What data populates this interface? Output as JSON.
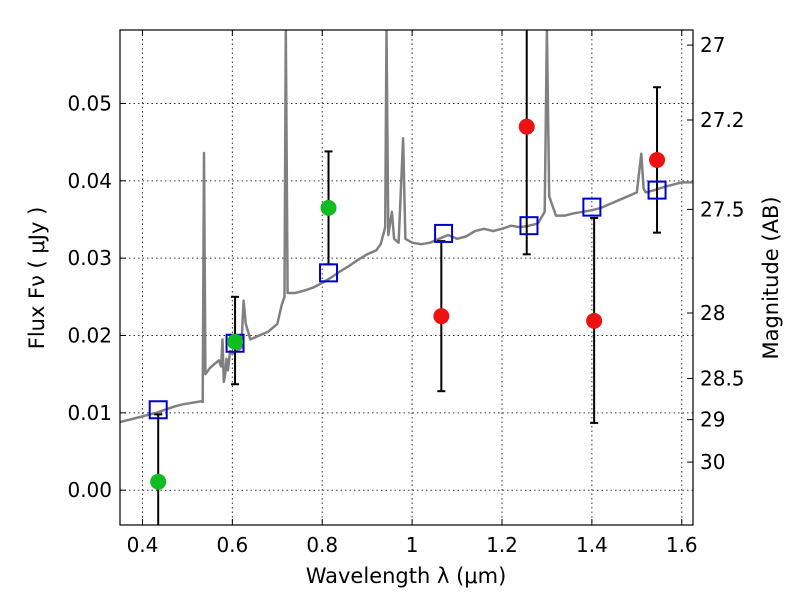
{
  "chart_data": {
    "type": "scatter",
    "xlabel": "Wavelength  λ (μm)",
    "ylabel": "Flux  Fν  ( μJy )",
    "ylabel_right": "Magnitude (AB)",
    "xlim": [
      0.35,
      1.625
    ],
    "ylim": [
      -0.0045,
      0.0595
    ],
    "x_ticks": [
      {
        "value": 0.4,
        "label": "0.4"
      },
      {
        "value": 0.6,
        "label": "0.6"
      },
      {
        "value": 0.8,
        "label": "0.8"
      },
      {
        "value": 1.0,
        "label": "1"
      },
      {
        "value": 1.2,
        "label": "1.2"
      },
      {
        "value": 1.4,
        "label": "1.4"
      },
      {
        "value": 1.6,
        "label": "1.6"
      }
    ],
    "y_ticks": [
      {
        "value": 0.0,
        "label": "0.00"
      },
      {
        "value": 0.01,
        "label": "0.01"
      },
      {
        "value": 0.02,
        "label": "0.02"
      },
      {
        "value": 0.03,
        "label": "0.03"
      },
      {
        "value": 0.04,
        "label": "0.04"
      },
      {
        "value": 0.05,
        "label": "0.05"
      }
    ],
    "mag_ticks": [
      {
        "value": 27.0,
        "label": "27"
      },
      {
        "value": 27.2,
        "label": "27.2"
      },
      {
        "value": 27.5,
        "label": "27.5"
      },
      {
        "value": 28.0,
        "label": "28"
      },
      {
        "value": 28.5,
        "label": "28.5"
      },
      {
        "value": 29.0,
        "label": "29"
      },
      {
        "value": 30.0,
        "label": "30"
      }
    ],
    "colors": {
      "spectrum": "#808080",
      "model": "#0000cc",
      "green": "#11bb22",
      "red": "#ee1111",
      "errorbar": "#000000"
    },
    "spectrum": [
      [
        0.35,
        0.0088
      ],
      [
        0.37,
        0.0091
      ],
      [
        0.39,
        0.0094
      ],
      [
        0.41,
        0.0097
      ],
      [
        0.43,
        0.01
      ],
      [
        0.45,
        0.0104
      ],
      [
        0.47,
        0.0108
      ],
      [
        0.49,
        0.0111
      ],
      [
        0.51,
        0.0113
      ],
      [
        0.53,
        0.0115
      ],
      [
        0.534,
        0.0114
      ],
      [
        0.537,
        0.0436
      ],
      [
        0.54,
        0.015
      ],
      [
        0.55,
        0.0158
      ],
      [
        0.56,
        0.0163
      ],
      [
        0.57,
        0.0168
      ],
      [
        0.575,
        0.016
      ],
      [
        0.578,
        0.0195
      ],
      [
        0.581,
        0.014
      ],
      [
        0.584,
        0.015
      ],
      [
        0.587,
        0.017
      ],
      [
        0.59,
        0.0155
      ],
      [
        0.595,
        0.018
      ],
      [
        0.6,
        0.0176
      ],
      [
        0.61,
        0.018
      ],
      [
        0.62,
        0.0184
      ],
      [
        0.625,
        0.0245
      ],
      [
        0.63,
        0.0215
      ],
      [
        0.64,
        0.0195
      ],
      [
        0.66,
        0.02
      ],
      [
        0.68,
        0.0205
      ],
      [
        0.7,
        0.0215
      ],
      [
        0.71,
        0.024
      ],
      [
        0.716,
        0.025
      ],
      [
        0.719,
        0.0595
      ],
      [
        0.723,
        0.0255
      ],
      [
        0.74,
        0.0255
      ],
      [
        0.76,
        0.0258
      ],
      [
        0.78,
        0.0262
      ],
      [
        0.8,
        0.0268
      ],
      [
        0.82,
        0.0275
      ],
      [
        0.84,
        0.0283
      ],
      [
        0.86,
        0.029
      ],
      [
        0.88,
        0.0298
      ],
      [
        0.9,
        0.0305
      ],
      [
        0.92,
        0.031
      ],
      [
        0.93,
        0.0318
      ],
      [
        0.94,
        0.034
      ],
      [
        0.943,
        0.0595
      ],
      [
        0.947,
        0.033
      ],
      [
        0.955,
        0.036
      ],
      [
        0.96,
        0.0325
      ],
      [
        0.97,
        0.032
      ],
      [
        0.98,
        0.0455
      ],
      [
        0.985,
        0.0325
      ],
      [
        1.0,
        0.032
      ],
      [
        1.02,
        0.0318
      ],
      [
        1.04,
        0.032
      ],
      [
        1.06,
        0.0325
      ],
      [
        1.08,
        0.033
      ],
      [
        1.1,
        0.0325
      ],
      [
        1.12,
        0.0328
      ],
      [
        1.14,
        0.0335
      ],
      [
        1.16,
        0.0338
      ],
      [
        1.18,
        0.0335
      ],
      [
        1.2,
        0.0338
      ],
      [
        1.22,
        0.0342
      ],
      [
        1.24,
        0.034
      ],
      [
        1.26,
        0.0342
      ],
      [
        1.28,
        0.0345
      ],
      [
        1.295,
        0.036
      ],
      [
        1.3,
        0.0595
      ],
      [
        1.305,
        0.038
      ],
      [
        1.32,
        0.0355
      ],
      [
        1.34,
        0.0355
      ],
      [
        1.36,
        0.0358
      ],
      [
        1.38,
        0.036
      ],
      [
        1.4,
        0.0362
      ],
      [
        1.42,
        0.0365
      ],
      [
        1.44,
        0.037
      ],
      [
        1.46,
        0.0375
      ],
      [
        1.48,
        0.038
      ],
      [
        1.5,
        0.0385
      ],
      [
        1.51,
        0.0435
      ],
      [
        1.515,
        0.039
      ],
      [
        1.52,
        0.0385
      ],
      [
        1.54,
        0.0388
      ],
      [
        1.56,
        0.0392
      ],
      [
        1.58,
        0.0395
      ],
      [
        1.6,
        0.0398
      ],
      [
        1.625,
        0.0398
      ]
    ],
    "model_points": [
      {
        "x": 0.435,
        "y": 0.0104
      },
      {
        "x": 0.606,
        "y": 0.019
      },
      {
        "x": 0.814,
        "y": 0.0281
      },
      {
        "x": 1.07,
        "y": 0.0332
      },
      {
        "x": 1.26,
        "y": 0.0342
      },
      {
        "x": 1.4,
        "y": 0.0366
      },
      {
        "x": 1.545,
        "y": 0.0388
      }
    ],
    "measurements": [
      {
        "x": 0.435,
        "y": 0.0011,
        "yerr_low": -0.0045,
        "yerr_high": 0.0098,
        "color": "green"
      },
      {
        "x": 0.606,
        "y": 0.0192,
        "yerr_low": 0.0137,
        "yerr_high": 0.025,
        "color": "green"
      },
      {
        "x": 0.814,
        "y": 0.0365,
        "yerr_low": 0.0292,
        "yerr_high": 0.0438,
        "color": "green"
      },
      {
        "x": 1.065,
        "y": 0.0225,
        "yerr_low": 0.0128,
        "yerr_high": 0.0322,
        "color": "red"
      },
      {
        "x": 1.255,
        "y": 0.047,
        "yerr_low": 0.0305,
        "yerr_high": 0.0595,
        "color": "red"
      },
      {
        "x": 1.405,
        "y": 0.0219,
        "yerr_low": 0.0087,
        "yerr_high": 0.0352,
        "color": "red"
      },
      {
        "x": 1.545,
        "y": 0.0427,
        "yerr_low": 0.0333,
        "yerr_high": 0.0521,
        "color": "red"
      }
    ]
  }
}
